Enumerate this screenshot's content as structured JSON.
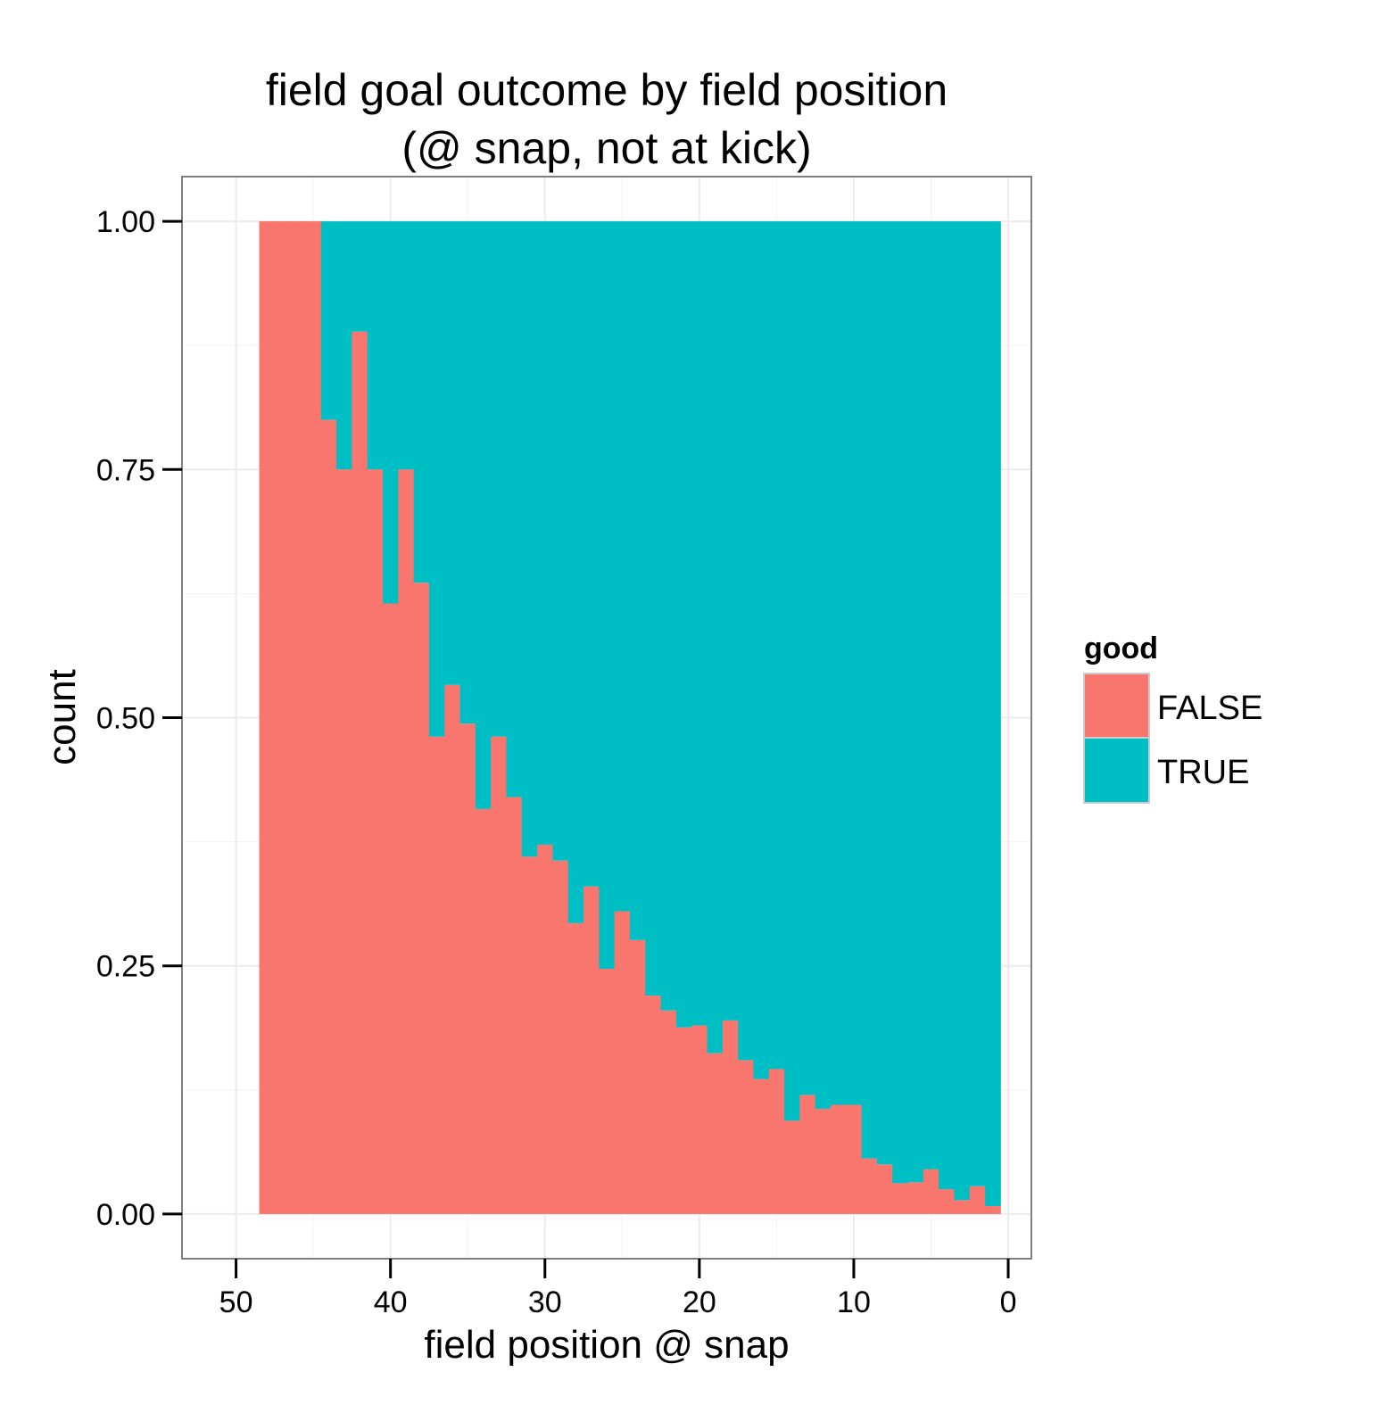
{
  "chart_data": {
    "type": "bar",
    "stacked": "fill",
    "title": [
      "field goal outcome by field position",
      "(@ snap, not at kick)"
    ],
    "xlabel": "field position @ snap",
    "ylabel": "count",
    "xlim": [
      53.5,
      -1.5
    ],
    "ylim": [
      -0.045,
      1.045
    ],
    "x_reversed": true,
    "x_ticks": [
      50,
      40,
      30,
      20,
      10,
      0
    ],
    "x_tick_labels": [
      "50",
      "40",
      "30",
      "20",
      "10",
      "0"
    ],
    "y_ticks": [
      0,
      0.25,
      0.5,
      0.75,
      1
    ],
    "y_tick_labels": [
      "0.00",
      "0.25",
      "0.50",
      "0.75",
      "1.00"
    ],
    "grid": true,
    "legend": {
      "title": "good",
      "position": "right",
      "entries": [
        {
          "label": "FALSE",
          "color": "#F8766D"
        },
        {
          "label": "TRUE",
          "color": "#00BFC4"
        }
      ]
    },
    "bin_width": 1,
    "x": [
      48,
      47,
      46,
      45,
      44,
      43,
      42,
      41,
      40,
      39,
      38,
      37,
      36,
      35,
      34,
      33,
      32,
      31,
      30,
      29,
      28,
      27,
      26,
      25,
      24,
      23,
      22,
      21,
      20,
      19,
      18,
      17,
      16,
      15,
      14,
      13,
      12,
      11,
      10,
      9,
      8,
      7,
      6,
      5,
      4,
      3,
      2,
      1
    ],
    "series": [
      {
        "name": "FALSE",
        "color": "#F8766D",
        "values": [
          1,
          1,
          1,
          1,
          0.8,
          0.75,
          0.889,
          0.75,
          0.615,
          0.75,
          0.636,
          0.481,
          0.533,
          0.494,
          0.408,
          0.481,
          0.42,
          0.36,
          0.372,
          0.356,
          0.293,
          0.33,
          0.247,
          0.305,
          0.276,
          0.22,
          0.205,
          0.188,
          0.19,
          0.162,
          0.195,
          0.155,
          0.136,
          0.146,
          0.094,
          0.12,
          0.106,
          0.11,
          0.11,
          0.056,
          0.05,
          0.031,
          0.032,
          0.045,
          0.025,
          0.014,
          0.028,
          0.008
        ]
      },
      {
        "name": "TRUE",
        "color": "#00BFC4",
        "values": [
          0,
          0,
          0,
          0,
          0.2,
          0.25,
          0.111,
          0.25,
          0.385,
          0.25,
          0.364,
          0.519,
          0.467,
          0.506,
          0.592,
          0.519,
          0.58,
          0.64,
          0.628,
          0.644,
          0.707,
          0.67,
          0.753,
          0.695,
          0.724,
          0.78,
          0.795,
          0.812,
          0.81,
          0.838,
          0.805,
          0.845,
          0.864,
          0.854,
          0.906,
          0.88,
          0.894,
          0.89,
          0.89,
          0.944,
          0.95,
          0.969,
          0.968,
          0.955,
          0.975,
          0.986,
          0.972,
          0.992
        ]
      }
    ]
  }
}
